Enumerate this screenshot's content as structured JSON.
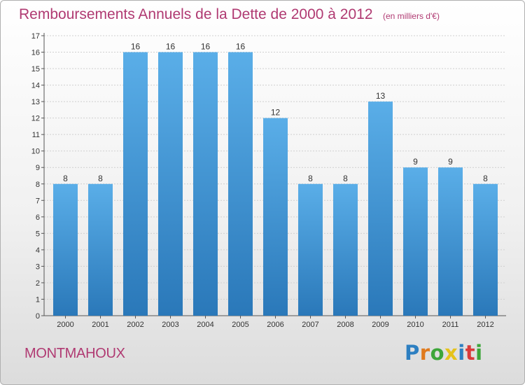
{
  "title": "Remboursements Annuels de la Dette de 2000 à 2012",
  "subtitle": "(en milliers d'€)",
  "municipality": "MONTMAHOUX",
  "brand": {
    "name": "Proxiti",
    "letter_colors": [
      "#2d7fc1",
      "#e07a1d",
      "#3da63a",
      "#e5c21b",
      "#2d7fc1",
      "#d93a3a",
      "#3da63a"
    ]
  },
  "chart_data": {
    "type": "bar",
    "title": "Remboursements Annuels de la Dette de 2000 à 2012",
    "subtitle": "(en milliers d'€)",
    "categories": [
      "2000",
      "2001",
      "2002",
      "2003",
      "2004",
      "2005",
      "2006",
      "2007",
      "2008",
      "2009",
      "2010",
      "2011",
      "2012"
    ],
    "values": [
      8,
      8,
      16,
      16,
      16,
      16,
      12,
      8,
      8,
      13,
      9,
      9,
      8
    ],
    "data_labels": [
      "8",
      "8",
      "16",
      "16",
      "16",
      "16",
      "12",
      "8",
      "8",
      "13",
      "9",
      "9",
      "8"
    ],
    "ylim": [
      0,
      17
    ],
    "yticks": [
      "0",
      "1",
      "2",
      "3",
      "4",
      "5",
      "6",
      "7",
      "8",
      "9",
      "10",
      "11",
      "12",
      "13",
      "14",
      "15",
      "16",
      "17"
    ],
    "grid": true,
    "legend": "none",
    "bar_color_top": "#5aaee8",
    "bar_color_bottom": "#2a78b9"
  }
}
